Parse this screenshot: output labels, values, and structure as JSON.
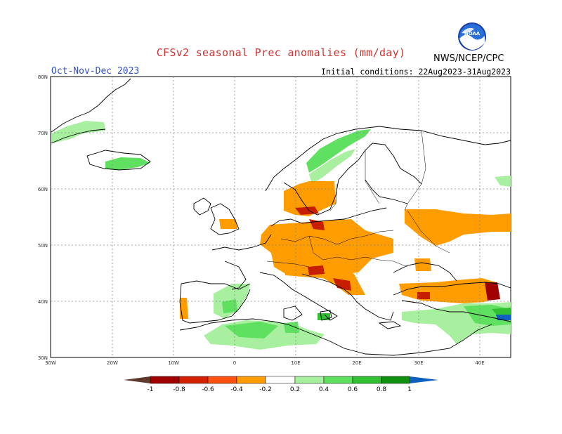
{
  "header": {
    "title": "CFSv2 seasonal Prec anomalies (mm/day)",
    "period": "Oct-Nov-Dec 2023",
    "initial_conditions": "Initial conditions: 22Aug2023-31Aug2023",
    "agency": "NWS/NCEP/CPC",
    "logo_text": "NOAA"
  },
  "axes": {
    "lat_labels": [
      "80N",
      "70N",
      "60N",
      "50N",
      "40N",
      "30N"
    ],
    "lon_labels": [
      "30W",
      "20W",
      "10W",
      "0",
      "10E",
      "20E",
      "30E",
      "40E"
    ]
  },
  "colorbar": {
    "labels": [
      "-1",
      "-0.8",
      "-0.6",
      "-0.4",
      "-0.2",
      "0.2",
      "0.4",
      "0.6",
      "0.8",
      "1"
    ],
    "colors": [
      "#5c3a2e",
      "#a00000",
      "#d42000",
      "#ff5010",
      "#ff9c00",
      "#ffffff",
      "#a8f0a0",
      "#60e060",
      "#30c030",
      "#109010",
      "#1060c0"
    ]
  },
  "legend_colors": {
    "dry_strong": "#c81e00",
    "dry_moderate": "#ff9c00",
    "wet_light": "#a8f0a0",
    "wet_moderate": "#60e060",
    "wet_strong": "#30c030",
    "wet_extreme": "#1060c0"
  }
}
